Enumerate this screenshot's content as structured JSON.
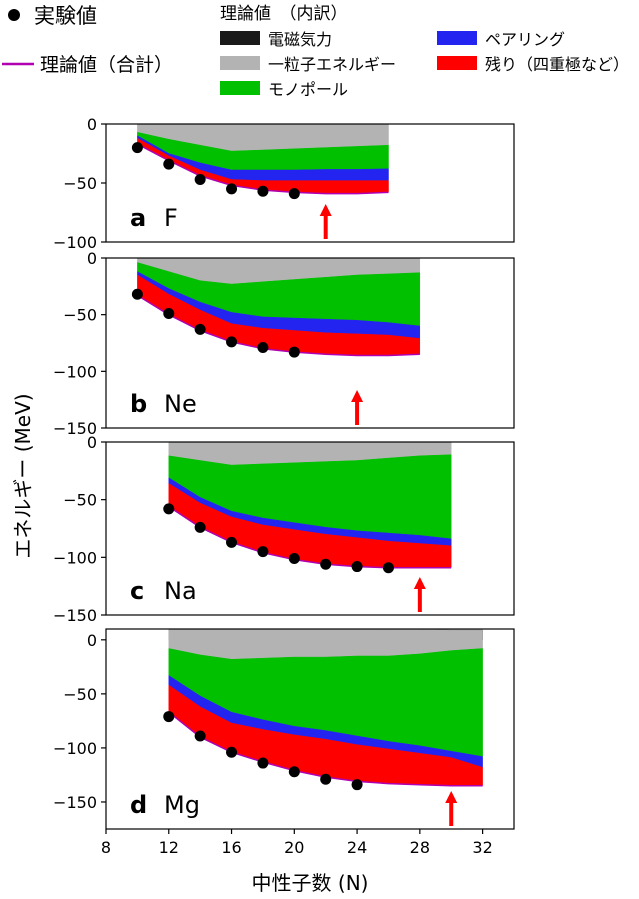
{
  "legend": {
    "experiment": "実験値",
    "theory_total": "理論値（合計）",
    "breakdown_title": "理論値　（内訳）",
    "components": [
      {
        "label": "電磁気力",
        "color": "#1a1a1a"
      },
      {
        "label": "一粒子エネルギー",
        "color": "#b3b3b3"
      },
      {
        "label": "モノポール",
        "color": "#00c000"
      },
      {
        "label": "ペアリング",
        "color": "#2424f0"
      },
      {
        "label": "残り（四重極など）",
        "color": "#ff0000"
      }
    ],
    "total_color": "#b000b0"
  },
  "chart_data": [
    {
      "type": "area",
      "panel_letter": "a",
      "element": "F",
      "ylim": [
        -100,
        0
      ],
      "yticks": [
        "0",
        "−50",
        "−100"
      ],
      "ytick_values": [
        0,
        -50,
        -100
      ],
      "x": [
        10,
        12,
        14,
        16,
        18,
        20,
        22,
        24,
        26
      ],
      "series": [
        {
          "name": "電磁気力",
          "values": [
            1,
            1,
            1,
            1,
            0.5,
            0.5,
            0.5,
            0.5,
            0.5
          ]
        },
        {
          "name": "一粒子エネルギー",
          "values": [
            -7,
            -13,
            -18,
            -23,
            -22,
            -21,
            -20,
            -19,
            -18
          ]
        },
        {
          "name": "モノポール",
          "values": [
            -10,
            -25,
            -33,
            -39,
            -39,
            -39,
            -38.5,
            -38.5,
            -38
          ]
        },
        {
          "name": "ペアリング",
          "values": [
            -12,
            -27,
            -39,
            -47,
            -48,
            -48,
            -48,
            -48,
            -48
          ]
        },
        {
          "name": "残り（四重極など）",
          "values": [
            -17,
            -31,
            -44,
            -52,
            -56,
            -58,
            -59,
            -59,
            -58
          ]
        }
      ],
      "experiment": {
        "x": [
          10,
          12,
          14,
          16,
          18,
          20
        ],
        "values": [
          -20,
          -34,
          -47,
          -55,
          -57,
          -59
        ]
      },
      "drip_line_N": 22
    },
    {
      "type": "area",
      "panel_letter": "b",
      "element": "Ne",
      "ylim": [
        -150,
        0
      ],
      "yticks": [
        "0",
        "−50",
        "−100",
        "−150"
      ],
      "ytick_values": [
        0,
        -50,
        -100,
        -150
      ],
      "x": [
        10,
        12,
        14,
        16,
        18,
        20,
        22,
        24,
        26,
        28
      ],
      "series": [
        {
          "name": "電磁気力",
          "values": [
            5,
            5,
            5,
            5,
            4.5,
            4.5,
            4,
            4,
            4,
            3
          ]
        },
        {
          "name": "一粒子エネルギー",
          "values": [
            -4,
            -12,
            -20,
            -23,
            -21,
            -19,
            -17,
            -15,
            -14,
            -13
          ]
        },
        {
          "name": "モノポール",
          "values": [
            -12,
            -27,
            -39,
            -48,
            -52,
            -53,
            -54,
            -55,
            -57,
            -60
          ]
        },
        {
          "name": "ペアリング",
          "values": [
            -15,
            -32,
            -46,
            -58,
            -62,
            -64,
            -66,
            -67,
            -68,
            -71
          ]
        },
        {
          "name": "残り（四重極など）",
          "values": [
            -33,
            -50,
            -64,
            -74,
            -80,
            -83,
            -85,
            -86,
            -86,
            -85
          ]
        }
      ],
      "experiment": {
        "x": [
          10,
          12,
          14,
          16,
          18,
          20
        ],
        "values": [
          -32,
          -49,
          -63,
          -74,
          -79,
          -83
        ]
      },
      "drip_line_N": 24
    },
    {
      "type": "area",
      "panel_letter": "c",
      "element": "Na",
      "ylim": [
        -150,
        0
      ],
      "yticks": [
        "0",
        "−50",
        "−100",
        "−150"
      ],
      "ytick_values": [
        0,
        -50,
        -100,
        -150
      ],
      "x": [
        12,
        14,
        16,
        18,
        20,
        22,
        24,
        26,
        28,
        30
      ],
      "series": [
        {
          "name": "電磁気力",
          "values": [
            8,
            8,
            8,
            7.5,
            7.5,
            7.5,
            7,
            7,
            6.5,
            6
          ]
        },
        {
          "name": "一粒子エネルギー",
          "values": [
            -12,
            -16,
            -20,
            -19,
            -18,
            -17,
            -16,
            -14,
            -12,
            -11
          ]
        },
        {
          "name": "モノポール",
          "values": [
            -31,
            -48,
            -60,
            -66,
            -70,
            -74,
            -77,
            -79,
            -81,
            -84
          ]
        },
        {
          "name": "ペアリング",
          "values": [
            -36,
            -53,
            -65,
            -72,
            -76,
            -80,
            -83,
            -86,
            -88,
            -90
          ]
        },
        {
          "name": "残り（四重極など）",
          "values": [
            -56,
            -74,
            -87,
            -96,
            -102,
            -106,
            -108,
            -109,
            -109,
            -109
          ]
        }
      ],
      "experiment": {
        "x": [
          12,
          14,
          16,
          18,
          20,
          22,
          24,
          26
        ],
        "values": [
          -58,
          -74,
          -87,
          -95,
          -101,
          -106,
          -108,
          -109
        ]
      },
      "drip_line_N": 28
    },
    {
      "type": "area",
      "panel_letter": "d",
      "element": "Mg",
      "ylim": [
        -175,
        10
      ],
      "yticks": [
        "0",
        "−50",
        "−100",
        "−150"
      ],
      "ytick_values": [
        0,
        -50,
        -100,
        -150
      ],
      "x": [
        12,
        14,
        16,
        18,
        20,
        22,
        24,
        26,
        28,
        30,
        32
      ],
      "series": [
        {
          "name": "電磁気力",
          "values": [
            10,
            10,
            10,
            10,
            10,
            10,
            10,
            9.5,
            9.5,
            9,
            9
          ]
        },
        {
          "name": "一粒子エネルギー",
          "values": [
            -8,
            -14,
            -18,
            -17,
            -16,
            -16,
            -15,
            -15,
            -13,
            -10,
            -8
          ]
        },
        {
          "name": "モノポール",
          "values": [
            -33,
            -52,
            -67,
            -74,
            -80,
            -84,
            -89,
            -94,
            -98,
            -103,
            -108
          ]
        },
        {
          "name": "ペアリング",
          "values": [
            -42,
            -62,
            -77,
            -83,
            -88,
            -92,
            -97,
            -101,
            -105,
            -109,
            -118
          ]
        },
        {
          "name": "残り（四重極など）",
          "values": [
            -67,
            -90,
            -104,
            -113,
            -121,
            -127,
            -131,
            -133,
            -134,
            -135,
            -135
          ]
        }
      ],
      "experiment": {
        "x": [
          12,
          14,
          16,
          18,
          20,
          22,
          24
        ],
        "values": [
          -71,
          -89,
          -104,
          -114,
          -122,
          -129,
          -134
        ]
      },
      "drip_line_N": 30
    }
  ],
  "axes": {
    "xlabel": "中性子数 (N)",
    "ylabel": "エネルギー (MeV)",
    "xlim": [
      8,
      34
    ],
    "xticks": [
      8,
      12,
      16,
      20,
      24,
      28,
      32
    ]
  },
  "arrow_color": "#ff0000"
}
